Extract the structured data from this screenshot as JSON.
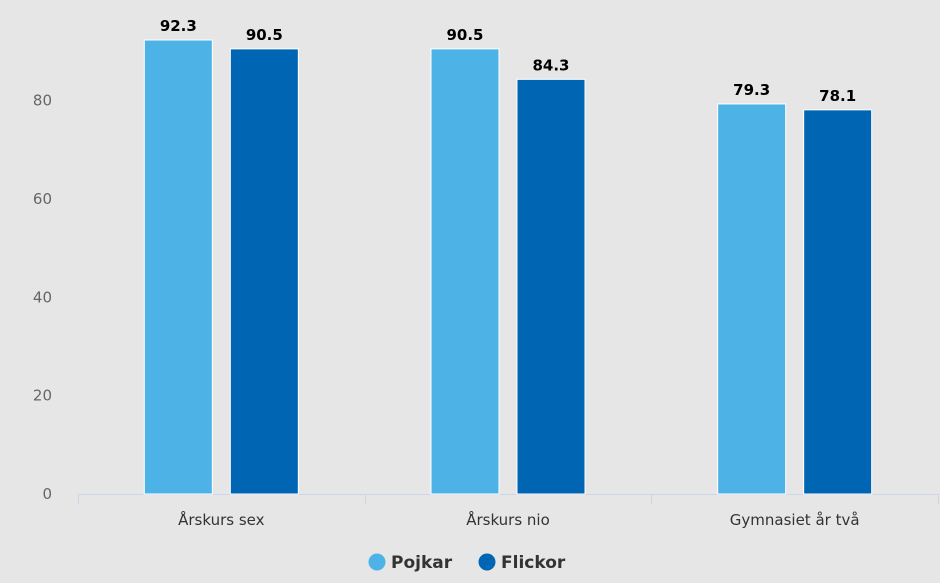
{
  "chart_data": {
    "type": "bar",
    "categories": [
      "Årskurs sex",
      "Årskurs nio",
      "Gymnasiet år två"
    ],
    "series": [
      {
        "name": "Pojkar",
        "color": "#4db3e6",
        "values": [
          92.3,
          90.5,
          79.3
        ]
      },
      {
        "name": "Flickor",
        "color": "#0066b3",
        "values": [
          90.5,
          84.3,
          78.1
        ]
      }
    ],
    "y_ticks": [
      0,
      20,
      40,
      60,
      80
    ],
    "ylim": [
      0,
      92.3
    ],
    "grid": false,
    "legend_position": "bottom-center",
    "data_labels": true
  }
}
